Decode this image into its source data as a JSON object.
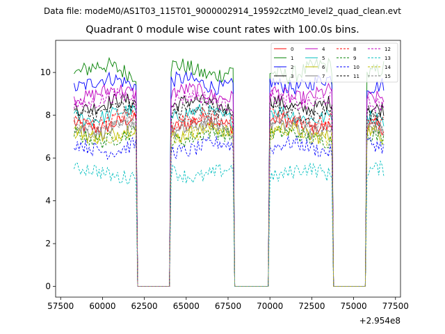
{
  "header": {
    "data_file": "Data file: modeM0/AS1T03_115T01_9000002914_19592cztM0_level2_quad_clean.evt"
  },
  "chart_data": {
    "type": "line",
    "title": "Quadrant 0 module wise count rates with 100.0s bins.",
    "xlabel": "",
    "ylabel": "",
    "x_offset_label": "+2.954e8",
    "xlim": [
      57200,
      77800
    ],
    "ylim": [
      -0.5,
      11.5
    ],
    "x_ticks": [
      57500,
      60000,
      62500,
      65000,
      67500,
      70000,
      72500,
      75000,
      77500
    ],
    "y_ticks": [
      0,
      2,
      4,
      6,
      8,
      10
    ],
    "grid": false,
    "legend_position": "top-right",
    "legend_columns": 4,
    "segments": [
      {
        "start": 58300,
        "end": 62000
      },
      {
        "start": 64100,
        "end": 67800
      },
      {
        "start": 70000,
        "end": 73700
      },
      {
        "start": 75800,
        "end": 76800
      }
    ],
    "gap_value": 0,
    "series": [
      {
        "name": "0",
        "color": "#ff0000",
        "dash": "solid",
        "level": 7.6,
        "amp": 0.35
      },
      {
        "name": "1",
        "color": "#008000",
        "dash": "solid",
        "level": 10.1,
        "amp": 0.4
      },
      {
        "name": "2",
        "color": "#0000ff",
        "dash": "solid",
        "level": 9.5,
        "amp": 0.35
      },
      {
        "name": "3",
        "color": "#000000",
        "dash": "solid",
        "level": 8.5,
        "amp": 0.35
      },
      {
        "name": "4",
        "color": "#bf00bf",
        "dash": "solid",
        "level": 9.0,
        "amp": 0.35
      },
      {
        "name": "5",
        "color": "#00bfbf",
        "dash": "solid",
        "level": 8.0,
        "amp": 0.35
      },
      {
        "name": "6",
        "color": "#bfbf00",
        "dash": "solid",
        "level": 7.2,
        "amp": 0.35
      },
      {
        "name": "7",
        "color": "#808080",
        "dash": "solid",
        "level": 7.4,
        "amp": 0.35
      },
      {
        "name": "8",
        "color": "#ff0000",
        "dash": "dashed",
        "level": 7.8,
        "amp": 0.35
      },
      {
        "name": "9",
        "color": "#008000",
        "dash": "dashed",
        "level": 7.0,
        "amp": 0.35
      },
      {
        "name": "10",
        "color": "#0000ff",
        "dash": "dashed",
        "level": 6.5,
        "amp": 0.35
      },
      {
        "name": "11",
        "color": "#000000",
        "dash": "dashed",
        "level": 8.2,
        "amp": 0.35
      },
      {
        "name": "12",
        "color": "#bf00bf",
        "dash": "dashed",
        "level": 8.7,
        "amp": 0.35
      },
      {
        "name": "13",
        "color": "#00bfbf",
        "dash": "dashed",
        "level": 5.3,
        "amp": 0.35
      },
      {
        "name": "14",
        "color": "#bfbf00",
        "dash": "dashed",
        "level": 7.1,
        "amp": 0.35
      },
      {
        "name": "15",
        "color": "#808080",
        "dash": "dashed",
        "level": 7.6,
        "amp": 0.35
      }
    ]
  }
}
